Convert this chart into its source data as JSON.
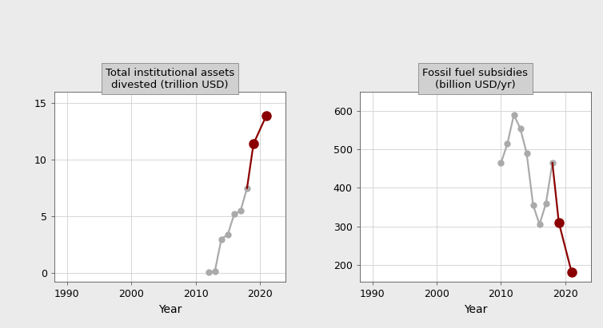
{
  "left": {
    "title": "Total institutional assets\ndivested (trillion USD)",
    "xlabel": "Year",
    "gray_years": [
      2012,
      2013,
      2014,
      2015,
      2016,
      2017,
      2018
    ],
    "gray_values": [
      0.05,
      0.18,
      3.0,
      3.4,
      5.2,
      5.5,
      7.5
    ],
    "red_years": [
      2018,
      2019,
      2021
    ],
    "red_values": [
      7.5,
      11.4,
      13.9
    ],
    "red_dot_years": [
      2019,
      2021
    ],
    "red_dot_values": [
      11.4,
      13.9
    ],
    "ylim": [
      -0.8,
      16
    ],
    "yticks": [
      0,
      5,
      10,
      15
    ],
    "xlim": [
      1988,
      2024
    ],
    "xticks": [
      1990,
      2000,
      2010,
      2020
    ]
  },
  "right": {
    "title": "Fossil fuel subsidies\n(billion USD/yr)",
    "xlabel": "Year",
    "gray_years": [
      2010,
      2011,
      2012,
      2013,
      2014,
      2015,
      2016,
      2017,
      2018
    ],
    "gray_values": [
      465,
      515,
      590,
      555,
      490,
      355,
      305,
      360,
      465
    ],
    "red_years": [
      2018,
      2019,
      2021
    ],
    "red_values": [
      465,
      310,
      180
    ],
    "red_dot_years": [
      2019,
      2021
    ],
    "red_dot_values": [
      310,
      180
    ],
    "ylim": [
      155,
      650
    ],
    "yticks": [
      200,
      300,
      400,
      500,
      600
    ],
    "xlim": [
      1988,
      2024
    ],
    "xticks": [
      1990,
      2000,
      2010,
      2020
    ]
  },
  "gray_color": "#aaaaaa",
  "red_color": "#8b0000",
  "bg_color": "#ebebeb",
  "plot_bg": "#ffffff",
  "title_bg": "#d0d0d0",
  "marker_size": 5,
  "linewidth": 1.6,
  "grid_color": "#d0d0d0"
}
